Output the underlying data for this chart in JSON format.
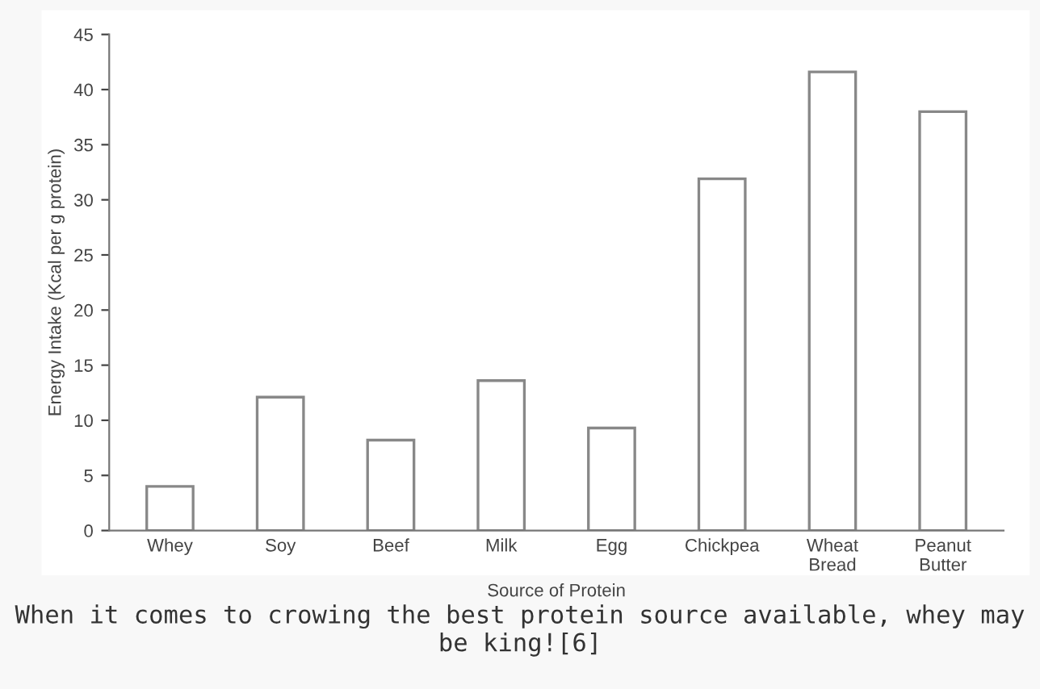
{
  "chart_data": {
    "type": "bar",
    "xlabel": "Source of Protein",
    "ylabel": "Energy Intake (Kcal per g protein)",
    "categories": [
      "Whey",
      "Soy",
      "Beef",
      "Milk",
      "Egg",
      "Chickpea",
      "Wheat\nBread",
      "Peanut\nButter"
    ],
    "values": [
      4.0,
      12.1,
      8.2,
      13.6,
      9.3,
      31.9,
      41.6,
      38.0
    ],
    "color": "#ffffff",
    "ylim": [
      0,
      45
    ],
    "yticks": [
      0,
      5,
      10,
      15,
      20,
      25,
      30,
      35,
      40,
      45
    ],
    "grid": false,
    "annotations": [
      "When it comes to crowing the best protein source available, whey may be king![6]"
    ]
  }
}
